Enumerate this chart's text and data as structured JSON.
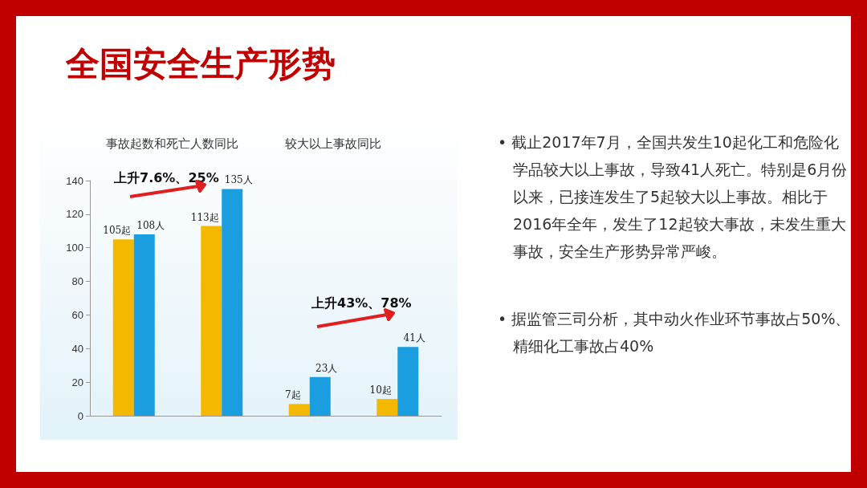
{
  "chart_data": {
    "type": "bar",
    "title": "全国安全生产形势",
    "categories": [
      null,
      null,
      null,
      null
    ],
    "series": [
      {
        "color": "#f5b800",
        "values": [
          105,
          113,
          7,
          10
        ],
        "value_labels": [
          "105起",
          "113起",
          "7起",
          "10起"
        ]
      },
      {
        "color": "#1a9ee0",
        "values": [
          108,
          135,
          23,
          41
        ],
        "value_labels": [
          "108人",
          "135人",
          "23人",
          "41人"
        ]
      }
    ],
    "ylim": [
      0,
      140
    ],
    "yticks": [
      0,
      20,
      40,
      60,
      80,
      100,
      120,
      140
    ],
    "grid": false,
    "annotations": [
      "事故起数和死亡人数同比",
      "较大以上事故同比",
      "上升7.6%、25%",
      "上升43%、78%",
      "• 截止2017年7月，全国共发生10起化工和危险化学品较大以上事故，导致41人死亡。特别是6月份以来，已接连发生了5起较大以上事故。相比于2016年全年，发生了12起较大事故，未发生重大事故，安全生产形势异常严峻。",
      "• 据监管三司分析，其中动火作业环节事故占50%、精细化工事故占40%"
    ]
  }
}
